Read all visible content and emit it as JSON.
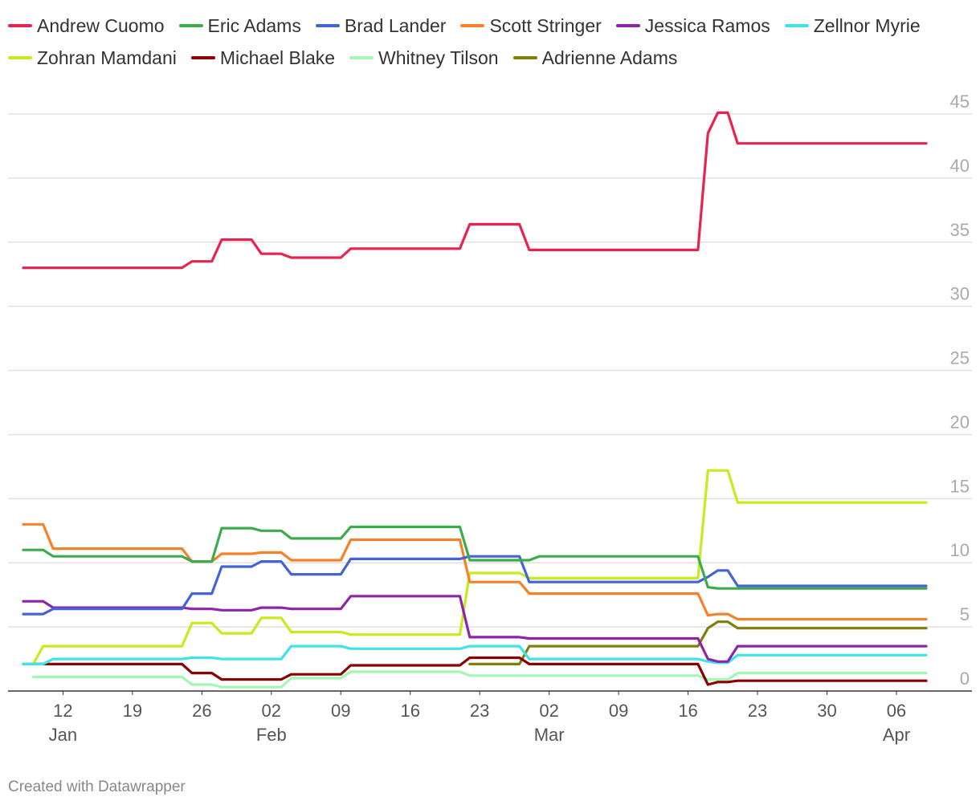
{
  "chart_data": {
    "type": "line",
    "x_axis": {
      "ticks": [
        {
          "date": "2025-01-12",
          "label": "12",
          "sublabel": "Jan"
        },
        {
          "date": "2025-01-19",
          "label": "19",
          "sublabel": ""
        },
        {
          "date": "2025-01-26",
          "label": "26",
          "sublabel": ""
        },
        {
          "date": "2025-02-02",
          "label": "02",
          "sublabel": "Feb"
        },
        {
          "date": "2025-02-09",
          "label": "09",
          "sublabel": ""
        },
        {
          "date": "2025-02-16",
          "label": "16",
          "sublabel": ""
        },
        {
          "date": "2025-02-23",
          "label": "23",
          "sublabel": ""
        },
        {
          "date": "2025-03-02",
          "label": "02",
          "sublabel": "Mar"
        },
        {
          "date": "2025-03-09",
          "label": "09",
          "sublabel": ""
        },
        {
          "date": "2025-03-16",
          "label": "16",
          "sublabel": ""
        },
        {
          "date": "2025-03-23",
          "label": "23",
          "sublabel": ""
        },
        {
          "date": "2025-03-30",
          "label": "30",
          "sublabel": ""
        },
        {
          "date": "2025-04-06",
          "label": "06",
          "sublabel": "Apr"
        }
      ],
      "range": [
        "2025-01-07",
        "2025-04-12"
      ]
    },
    "y_axis": {
      "ticks": [
        0,
        5,
        10,
        15,
        20,
        25,
        30,
        35,
        40,
        45
      ],
      "range": [
        0,
        46
      ],
      "position": "right",
      "grid": true
    },
    "legend_position": "top",
    "series": [
      {
        "name": "Andrew Cuomo",
        "color": "#e8234f",
        "points": [
          [
            "2025-01-08",
            33.0
          ],
          [
            "2025-01-24",
            33.0
          ],
          [
            "2025-01-25",
            33.5
          ],
          [
            "2025-01-27",
            33.5
          ],
          [
            "2025-01-28",
            35.2
          ],
          [
            "2025-01-31",
            35.2
          ],
          [
            "2025-02-01",
            34.1
          ],
          [
            "2025-02-03",
            34.1
          ],
          [
            "2025-02-04",
            33.8
          ],
          [
            "2025-02-09",
            33.8
          ],
          [
            "2025-02-10",
            34.5
          ],
          [
            "2025-02-21",
            34.5
          ],
          [
            "2025-02-22",
            36.4
          ],
          [
            "2025-02-27",
            36.4
          ],
          [
            "2025-02-28",
            34.4
          ],
          [
            "2025-03-17",
            34.4
          ],
          [
            "2025-03-18",
            43.5
          ],
          [
            "2025-03-19",
            45.1
          ],
          [
            "2025-03-20",
            45.1
          ],
          [
            "2025-03-21",
            42.7
          ],
          [
            "2025-04-09",
            42.7
          ]
        ]
      },
      {
        "name": "Eric Adams",
        "color": "#3cab4b",
        "points": [
          [
            "2025-01-08",
            11.0
          ],
          [
            "2025-01-10",
            11.0
          ],
          [
            "2025-01-11",
            10.5
          ],
          [
            "2025-01-24",
            10.5
          ],
          [
            "2025-01-25",
            10.1
          ],
          [
            "2025-01-27",
            10.1
          ],
          [
            "2025-01-28",
            12.7
          ],
          [
            "2025-01-31",
            12.7
          ],
          [
            "2025-02-01",
            12.5
          ],
          [
            "2025-02-03",
            12.5
          ],
          [
            "2025-02-04",
            11.9
          ],
          [
            "2025-02-09",
            11.9
          ],
          [
            "2025-02-10",
            12.8
          ],
          [
            "2025-02-21",
            12.8
          ],
          [
            "2025-02-22",
            10.2
          ],
          [
            "2025-02-28",
            10.2
          ],
          [
            "2025-03-01",
            10.5
          ],
          [
            "2025-03-17",
            10.5
          ],
          [
            "2025-03-18",
            8.1
          ],
          [
            "2025-03-19",
            8.0
          ],
          [
            "2025-04-09",
            8.0
          ]
        ]
      },
      {
        "name": "Brad Lander",
        "color": "#4663d4",
        "points": [
          [
            "2025-01-08",
            6.0
          ],
          [
            "2025-01-10",
            6.0
          ],
          [
            "2025-01-11",
            6.4
          ],
          [
            "2025-01-24",
            6.4
          ],
          [
            "2025-01-25",
            7.6
          ],
          [
            "2025-01-27",
            7.6
          ],
          [
            "2025-01-28",
            9.7
          ],
          [
            "2025-01-31",
            9.7
          ],
          [
            "2025-02-01",
            10.1
          ],
          [
            "2025-02-03",
            10.1
          ],
          [
            "2025-02-04",
            9.1
          ],
          [
            "2025-02-09",
            9.1
          ],
          [
            "2025-02-10",
            10.3
          ],
          [
            "2025-02-21",
            10.3
          ],
          [
            "2025-02-22",
            10.5
          ],
          [
            "2025-02-27",
            10.5
          ],
          [
            "2025-02-28",
            8.5
          ],
          [
            "2025-03-17",
            8.5
          ],
          [
            "2025-03-18",
            8.9
          ],
          [
            "2025-03-19",
            9.4
          ],
          [
            "2025-03-20",
            9.4
          ],
          [
            "2025-03-21",
            8.2
          ],
          [
            "2025-04-09",
            8.2
          ]
        ]
      },
      {
        "name": "Scott Stringer",
        "color": "#f5822a",
        "points": [
          [
            "2025-01-08",
            13.0
          ],
          [
            "2025-01-10",
            13.0
          ],
          [
            "2025-01-11",
            11.1
          ],
          [
            "2025-01-24",
            11.1
          ],
          [
            "2025-01-25",
            10.1
          ],
          [
            "2025-01-27",
            10.1
          ],
          [
            "2025-01-28",
            10.7
          ],
          [
            "2025-01-31",
            10.7
          ],
          [
            "2025-02-01",
            10.8
          ],
          [
            "2025-02-03",
            10.8
          ],
          [
            "2025-02-04",
            10.2
          ],
          [
            "2025-02-09",
            10.2
          ],
          [
            "2025-02-10",
            11.8
          ],
          [
            "2025-02-21",
            11.8
          ],
          [
            "2025-02-22",
            8.5
          ],
          [
            "2025-02-27",
            8.5
          ],
          [
            "2025-02-28",
            7.6
          ],
          [
            "2025-03-17",
            7.6
          ],
          [
            "2025-03-18",
            5.9
          ],
          [
            "2025-03-19",
            6.0
          ],
          [
            "2025-03-20",
            6.0
          ],
          [
            "2025-03-21",
            5.6
          ],
          [
            "2025-04-09",
            5.6
          ]
        ]
      },
      {
        "name": "Jessica Ramos",
        "color": "#8e24aa",
        "points": [
          [
            "2025-01-08",
            7.0
          ],
          [
            "2025-01-10",
            7.0
          ],
          [
            "2025-01-11",
            6.5
          ],
          [
            "2025-01-24",
            6.5
          ],
          [
            "2025-01-25",
            6.4
          ],
          [
            "2025-01-27",
            6.4
          ],
          [
            "2025-01-28",
            6.3
          ],
          [
            "2025-01-31",
            6.3
          ],
          [
            "2025-02-01",
            6.5
          ],
          [
            "2025-02-03",
            6.5
          ],
          [
            "2025-02-04",
            6.4
          ],
          [
            "2025-02-09",
            6.4
          ],
          [
            "2025-02-10",
            7.4
          ],
          [
            "2025-02-21",
            7.4
          ],
          [
            "2025-02-22",
            4.2
          ],
          [
            "2025-02-27",
            4.2
          ],
          [
            "2025-02-28",
            4.1
          ],
          [
            "2025-03-17",
            4.1
          ],
          [
            "2025-03-18",
            2.5
          ],
          [
            "2025-03-19",
            2.3
          ],
          [
            "2025-03-20",
            2.3
          ],
          [
            "2025-03-21",
            3.5
          ],
          [
            "2025-04-09",
            3.5
          ]
        ]
      },
      {
        "name": "Zellnor Myrie",
        "color": "#40e3e8",
        "points": [
          [
            "2025-01-08",
            2.1
          ],
          [
            "2025-01-10",
            2.1
          ],
          [
            "2025-01-11",
            2.5
          ],
          [
            "2025-01-24",
            2.5
          ],
          [
            "2025-01-25",
            2.6
          ],
          [
            "2025-01-27",
            2.6
          ],
          [
            "2025-01-28",
            2.5
          ],
          [
            "2025-02-03",
            2.5
          ],
          [
            "2025-02-04",
            3.5
          ],
          [
            "2025-02-09",
            3.5
          ],
          [
            "2025-02-10",
            3.3
          ],
          [
            "2025-02-21",
            3.3
          ],
          [
            "2025-02-22",
            3.5
          ],
          [
            "2025-02-27",
            3.5
          ],
          [
            "2025-02-28",
            2.5
          ],
          [
            "2025-03-17",
            2.5
          ],
          [
            "2025-03-18",
            2.3
          ],
          [
            "2025-03-19",
            2.2
          ],
          [
            "2025-03-20",
            2.2
          ],
          [
            "2025-03-21",
            2.8
          ],
          [
            "2025-04-09",
            2.8
          ]
        ]
      },
      {
        "name": "Zohran Mamdani",
        "color": "#c5ec1c",
        "points": [
          [
            "2025-01-08",
            2.1
          ],
          [
            "2025-01-09",
            2.1
          ],
          [
            "2025-01-10",
            3.5
          ],
          [
            "2025-01-24",
            3.5
          ],
          [
            "2025-01-25",
            5.3
          ],
          [
            "2025-01-27",
            5.3
          ],
          [
            "2025-01-28",
            4.5
          ],
          [
            "2025-01-31",
            4.5
          ],
          [
            "2025-02-01",
            5.7
          ],
          [
            "2025-02-03",
            5.7
          ],
          [
            "2025-02-04",
            4.6
          ],
          [
            "2025-02-09",
            4.6
          ],
          [
            "2025-02-10",
            4.4
          ],
          [
            "2025-02-21",
            4.4
          ],
          [
            "2025-02-22",
            9.2
          ],
          [
            "2025-02-27",
            9.2
          ],
          [
            "2025-02-28",
            8.8
          ],
          [
            "2025-03-17",
            8.8
          ],
          [
            "2025-03-18",
            17.2
          ],
          [
            "2025-03-20",
            17.2
          ],
          [
            "2025-03-21",
            14.7
          ],
          [
            "2025-04-09",
            14.7
          ]
        ]
      },
      {
        "name": "Michael Blake",
        "color": "#8b0000",
        "points": [
          [
            "2025-01-08",
            2.1
          ],
          [
            "2025-01-24",
            2.1
          ],
          [
            "2025-01-25",
            1.4
          ],
          [
            "2025-01-27",
            1.4
          ],
          [
            "2025-01-28",
            0.9
          ],
          [
            "2025-02-03",
            0.9
          ],
          [
            "2025-02-04",
            1.3
          ],
          [
            "2025-02-09",
            1.3
          ],
          [
            "2025-02-10",
            2.0
          ],
          [
            "2025-02-21",
            2.0
          ],
          [
            "2025-02-22",
            2.6
          ],
          [
            "2025-02-27",
            2.6
          ],
          [
            "2025-02-28",
            2.1
          ],
          [
            "2025-03-17",
            2.1
          ],
          [
            "2025-03-18",
            0.5
          ],
          [
            "2025-03-19",
            0.7
          ],
          [
            "2025-03-20",
            0.7
          ],
          [
            "2025-03-21",
            0.8
          ],
          [
            "2025-04-09",
            0.8
          ]
        ]
      },
      {
        "name": "Whitney Tilson",
        "color": "#a3f7b5",
        "points": [
          [
            "2025-01-09",
            1.1
          ],
          [
            "2025-01-24",
            1.1
          ],
          [
            "2025-01-25",
            0.5
          ],
          [
            "2025-01-27",
            0.5
          ],
          [
            "2025-01-28",
            0.3
          ],
          [
            "2025-02-03",
            0.3
          ],
          [
            "2025-02-04",
            1.0
          ],
          [
            "2025-02-09",
            1.0
          ],
          [
            "2025-02-10",
            1.5
          ],
          [
            "2025-02-21",
            1.5
          ],
          [
            "2025-02-22",
            1.2
          ],
          [
            "2025-03-17",
            1.2
          ],
          [
            "2025-03-18",
            0.9
          ],
          [
            "2025-03-20",
            0.9
          ],
          [
            "2025-03-21",
            1.4
          ],
          [
            "2025-04-09",
            1.4
          ]
        ]
      },
      {
        "name": "Adrienne Adams",
        "color": "#7f7f0c",
        "points": [
          [
            "2025-02-22",
            2.1
          ],
          [
            "2025-02-27",
            2.1
          ],
          [
            "2025-02-28",
            3.5
          ],
          [
            "2025-03-17",
            3.5
          ],
          [
            "2025-03-18",
            4.9
          ],
          [
            "2025-03-19",
            5.4
          ],
          [
            "2025-03-20",
            5.4
          ],
          [
            "2025-03-21",
            4.9
          ],
          [
            "2025-04-09",
            4.9
          ]
        ]
      }
    ]
  },
  "footer": {
    "credit": "Created with Datawrapper"
  }
}
